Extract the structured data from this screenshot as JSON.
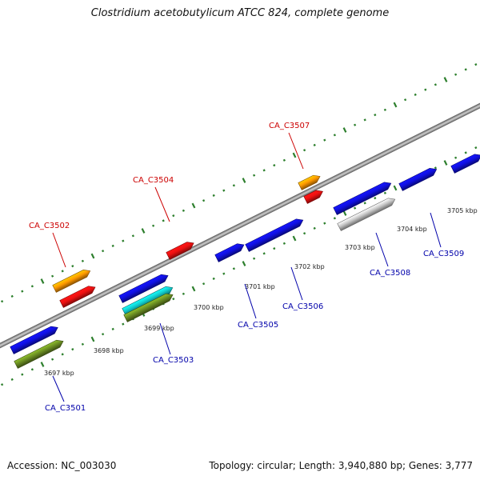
{
  "title": "Clostridium acetobutylicum ATCC 824, complete genome",
  "footer": {
    "accession": "Accession: NC_003030",
    "summary": "Topology: circular; Length: 3,940,880 bp; Genes: 3,777"
  },
  "colors": {
    "forward_label": "#cc0000",
    "reverse_label": "#0000aa",
    "axis": "#8a8a8a",
    "tick": "#2d7f2d",
    "blue": "#1010e0",
    "red": "#ee1111",
    "orange": "#ff9900",
    "olive": "#6b8e23",
    "cyan": "#11cccc",
    "gray": "#c8c8c8"
  },
  "scale_labels": [
    "3697 kbp",
    "3698 kbp",
    "3699 kbp",
    "3700 kbp",
    "3701 kbp",
    "3702 kbp",
    "3703 kbp",
    "3704 kbp",
    "3705 kbp"
  ],
  "gene_labels": [
    {
      "id": "CA_C3501",
      "strand": "reverse"
    },
    {
      "id": "CA_C3502",
      "strand": "forward"
    },
    {
      "id": "CA_C3503",
      "strand": "reverse"
    },
    {
      "id": "CA_C3504",
      "strand": "forward"
    },
    {
      "id": "CA_C3505",
      "strand": "reverse"
    },
    {
      "id": "CA_C3506",
      "strand": "reverse"
    },
    {
      "id": "CA_C3507",
      "strand": "forward"
    },
    {
      "id": "CA_C3508",
      "strand": "reverse"
    },
    {
      "id": "CA_C3509",
      "strand": "reverse"
    }
  ]
}
